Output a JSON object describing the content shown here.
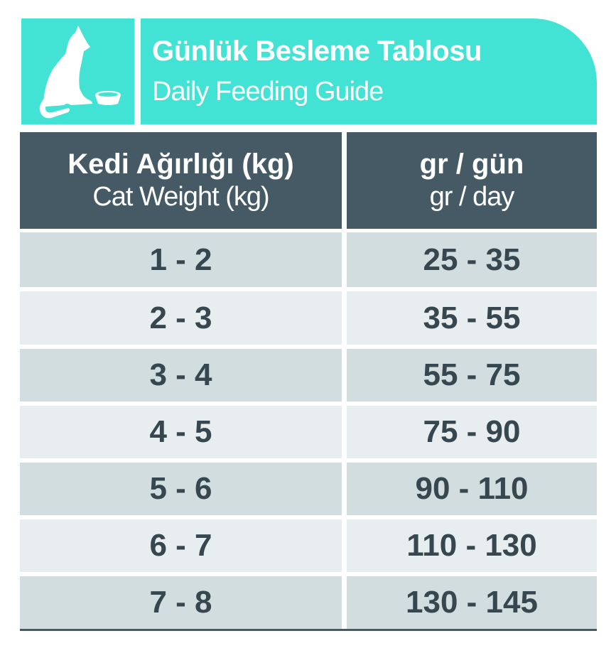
{
  "title": {
    "tr": "Günlük Besleme Tablosu",
    "en": "Daily Feeding Guide",
    "icon": "cat-with-bowl-icon"
  },
  "colors": {
    "accent": "#42e3d4",
    "header": "#455a64",
    "row_odd": "#d2dddf",
    "row_even": "#e8eeef",
    "text": "#37474f"
  },
  "columns": [
    {
      "tr": "Kedi Ağırlığı (kg)",
      "en": "Cat Weight (kg)"
    },
    {
      "tr": "gr / gün",
      "en": "gr / day"
    }
  ],
  "rows": [
    {
      "weight": "1 - 2",
      "amount": "25 - 35"
    },
    {
      "weight": "2 - 3",
      "amount": "35 - 55"
    },
    {
      "weight": "3 - 4",
      "amount": "55 - 75"
    },
    {
      "weight": "4 - 5",
      "amount": "75 - 90"
    },
    {
      "weight": "5 - 6",
      "amount": "90 - 110"
    },
    {
      "weight": "6 - 7",
      "amount": "110 - 130"
    },
    {
      "weight": "7 - 8",
      "amount": "130 - 145"
    }
  ]
}
